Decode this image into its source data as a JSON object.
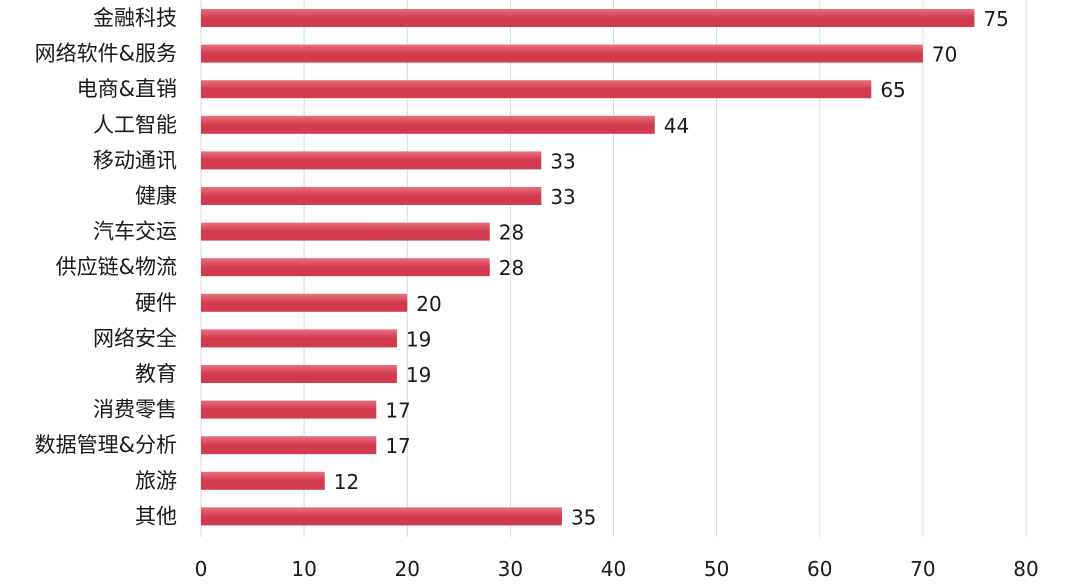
{
  "chart_data": {
    "type": "bar",
    "orientation": "horizontal",
    "categories": [
      "金融科技",
      "网络软件&服务",
      "电商&直销",
      "人工智能",
      "移动通讯",
      "健康",
      "汽车交运",
      "供应链&物流",
      "硬件",
      "网络安全",
      "教育",
      "消费零售",
      "数据管理&分析",
      "旅游",
      "其他"
    ],
    "values": [
      75,
      70,
      65,
      44,
      33,
      33,
      28,
      28,
      20,
      19,
      19,
      17,
      17,
      12,
      35
    ],
    "xlim": [
      0,
      80
    ],
    "xticks": [
      0,
      10,
      20,
      30,
      40,
      50,
      60,
      70,
      80
    ],
    "title": "",
    "xlabel": "",
    "ylabel": "",
    "grid": "vertical",
    "legend": "none",
    "bar_color": "#d23a4e",
    "bar_color_light": "#e8707e",
    "grid_color": "#d9d9d9",
    "data_labels": true
  }
}
